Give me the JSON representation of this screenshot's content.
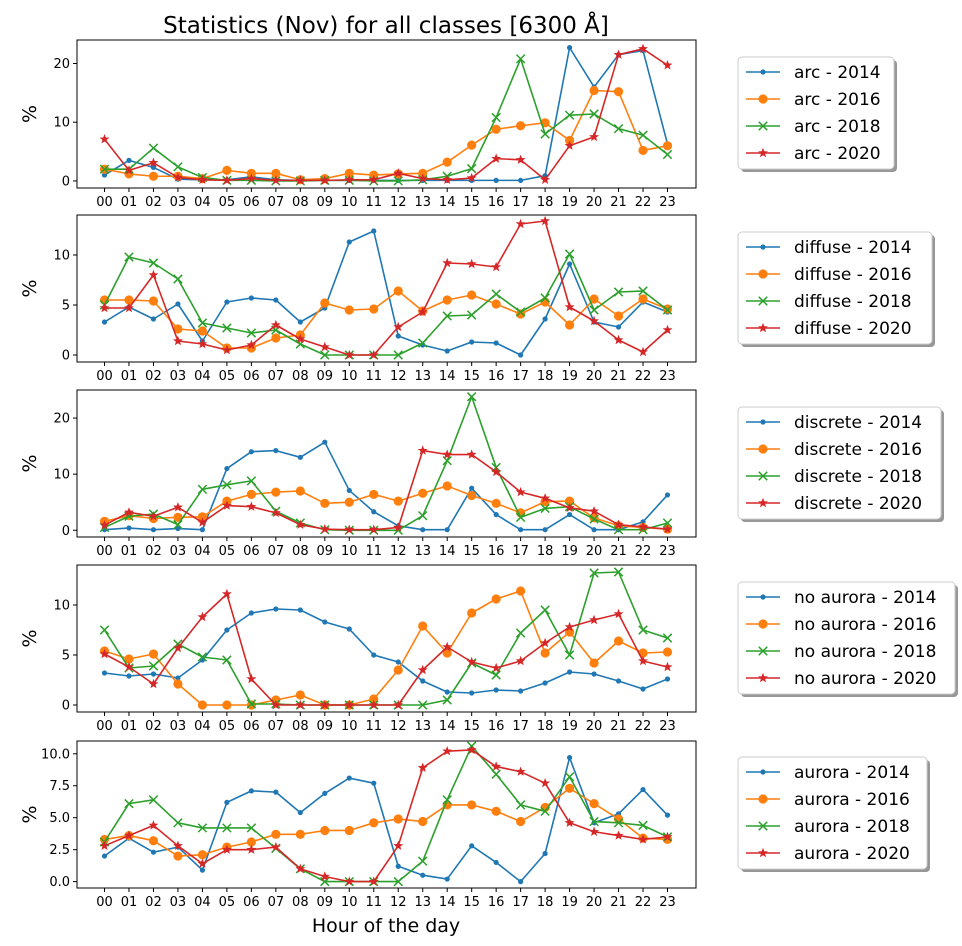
{
  "chart_data": {
    "type": "line",
    "title": "Statistics (Nov) for all classes [6300 Å]",
    "xlabel": "Hour of the day",
    "x": [
      "00",
      "01",
      "02",
      "03",
      "04",
      "05",
      "06",
      "07",
      "08",
      "09",
      "10",
      "11",
      "12",
      "13",
      "14",
      "15",
      "16",
      "17",
      "18",
      "19",
      "20",
      "21",
      "22",
      "23"
    ],
    "colors": {
      "2014": "#1f77b4",
      "2016": "#ff7f0e",
      "2018": "#2ca02c",
      "2020": "#d62728"
    },
    "markers": {
      "2014": "point",
      "2016": "circle",
      "2018": "x",
      "2020": "star"
    },
    "legend_position": "outside-right",
    "panels": [
      {
        "ylabel": "%",
        "ylim": [
          -1.2,
          24.0
        ],
        "yticks": [
          "0",
          "10",
          "20"
        ],
        "yticks_values": [
          0,
          10,
          20
        ],
        "series": [
          {
            "name": "arc - 2014",
            "year": "2014",
            "values": [
              1.0,
              3.5,
              2.3,
              0.3,
              0.2,
              0.2,
              0.7,
              0.2,
              0.1,
              0.1,
              0.1,
              0.1,
              0.1,
              0.1,
              0.1,
              0.1,
              0.1,
              0.1,
              0.9,
              22.7,
              16.0,
              21.5,
              22.2,
              6.3
            ]
          },
          {
            "name": "arc - 2016",
            "year": "2016",
            "values": [
              2.0,
              1.2,
              0.8,
              0.8,
              0.4,
              1.8,
              1.3,
              1.3,
              0.2,
              0.4,
              1.3,
              1.0,
              1.2,
              1.3,
              3.2,
              6.1,
              8.8,
              9.4,
              9.9,
              6.9,
              15.4,
              15.2,
              5.2,
              6.0
            ]
          },
          {
            "name": "arc - 2018",
            "year": "2018",
            "values": [
              2.0,
              2.0,
              5.6,
              2.4,
              0.6,
              0.1,
              0.1,
              0.0,
              0.0,
              0.1,
              0.1,
              0.0,
              0.0,
              0.2,
              0.8,
              2.1,
              10.8,
              20.8,
              8.0,
              11.2,
              11.4,
              8.9,
              7.8,
              4.5
            ]
          },
          {
            "name": "arc - 2020",
            "year": "2020",
            "values": [
              7.1,
              1.8,
              3.1,
              0.6,
              0.2,
              0.1,
              0.4,
              0.1,
              0.1,
              0.1,
              0.2,
              0.2,
              1.3,
              0.4,
              0.2,
              0.5,
              3.8,
              3.6,
              0.2,
              6.0,
              7.5,
              21.5,
              22.5,
              19.7
            ]
          }
        ]
      },
      {
        "ylabel": "%",
        "ylim": [
          -0.7,
          14.0
        ],
        "yticks": [
          "0",
          "5",
          "10"
        ],
        "yticks_values": [
          0,
          5,
          10
        ],
        "series": [
          {
            "name": "diffuse - 2014",
            "year": "2014",
            "values": [
              3.3,
              4.8,
              3.6,
              5.1,
              1.4,
              5.3,
              5.7,
              5.5,
              3.3,
              4.7,
              11.3,
              12.4,
              1.9,
              1.0,
              0.4,
              1.3,
              1.2,
              0.0,
              3.6,
              9.1,
              3.3,
              2.8,
              5.3,
              4.3
            ]
          },
          {
            "name": "diffuse - 2016",
            "year": "2016",
            "values": [
              5.5,
              5.5,
              5.4,
              2.6,
              2.4,
              0.7,
              0.7,
              1.7,
              2.0,
              5.2,
              4.5,
              4.6,
              6.4,
              4.4,
              5.5,
              6.0,
              5.1,
              4.1,
              5.3,
              3.0,
              5.6,
              3.9,
              5.6,
              4.6
            ]
          },
          {
            "name": "diffuse - 2018",
            "year": "2018",
            "values": [
              5.0,
              9.8,
              9.2,
              7.6,
              3.2,
              2.7,
              2.2,
              2.5,
              1.1,
              0.0,
              0.0,
              0.0,
              0.0,
              1.2,
              3.9,
              4.0,
              6.1,
              4.3,
              5.7,
              10.1,
              4.5,
              6.3,
              6.4,
              4.5
            ]
          },
          {
            "name": "diffuse - 2020",
            "year": "2020",
            "values": [
              4.7,
              4.7,
              8.0,
              1.4,
              1.1,
              0.5,
              1.0,
              3.0,
              1.6,
              0.8,
              0.0,
              0.0,
              2.8,
              4.3,
              9.2,
              9.1,
              8.8,
              13.1,
              13.4,
              4.8,
              3.4,
              1.5,
              0.3,
              2.5
            ]
          }
        ]
      },
      {
        "ylabel": "%",
        "ylim": [
          -1.2,
          25.0
        ],
        "yticks": [
          "0",
          "10",
          "20"
        ],
        "yticks_values": [
          0,
          10,
          20
        ],
        "series": [
          {
            "name": "discrete - 2014",
            "year": "2014",
            "values": [
              0.1,
              0.4,
              0.1,
              0.3,
              0.1,
              11.0,
              14.0,
              14.2,
              13.0,
              15.7,
              7.1,
              3.3,
              0.8,
              0.1,
              0.1,
              7.5,
              2.8,
              0.1,
              0.1,
              2.8,
              0.1,
              0.1,
              1.5,
              6.3
            ]
          },
          {
            "name": "discrete - 2016",
            "year": "2016",
            "values": [
              1.6,
              2.6,
              2.1,
              2.3,
              2.4,
              5.2,
              6.4,
              6.8,
              7.0,
              4.8,
              5.0,
              6.4,
              5.2,
              6.6,
              7.9,
              6.2,
              4.8,
              3.1,
              5.1,
              5.2,
              2.2,
              0.8,
              0.5,
              0.2
            ]
          },
          {
            "name": "discrete - 2018",
            "year": "2018",
            "values": [
              0.5,
              2.5,
              2.9,
              1.0,
              7.3,
              8.1,
              8.8,
              3.4,
              1.3,
              0.1,
              0.0,
              0.0,
              0.0,
              2.6,
              12.4,
              23.8,
              11.2,
              2.3,
              3.9,
              4.2,
              2.0,
              0.1,
              0.1,
              1.3
            ]
          },
          {
            "name": "discrete - 2020",
            "year": "2020",
            "values": [
              0.9,
              3.2,
              2.5,
              4.1,
              1.4,
              4.4,
              4.2,
              3.1,
              1.0,
              0.2,
              0.1,
              0.1,
              0.5,
              14.2,
              13.5,
              13.5,
              10.4,
              6.8,
              5.7,
              4.0,
              3.4,
              1.0,
              0.6,
              0.2
            ]
          }
        ]
      },
      {
        "ylabel": "%",
        "ylim": [
          -0.7,
          14.0
        ],
        "yticks": [
          "0",
          "5",
          "10"
        ],
        "yticks_values": [
          0,
          5,
          10
        ],
        "series": [
          {
            "name": "no aurora - 2014",
            "year": "2014",
            "values": [
              3.2,
              2.9,
              3.1,
              2.7,
              4.5,
              7.5,
              9.2,
              9.6,
              9.5,
              8.3,
              7.6,
              5.0,
              4.3,
              2.4,
              1.3,
              1.2,
              1.5,
              1.4,
              2.2,
              3.3,
              3.1,
              2.4,
              1.6,
              2.6
            ]
          },
          {
            "name": "no aurora - 2016",
            "year": "2016",
            "values": [
              5.4,
              4.6,
              5.1,
              2.1,
              0.0,
              0.0,
              0.0,
              0.5,
              1.0,
              0.0,
              0.0,
              0.6,
              3.5,
              7.9,
              5.2,
              9.2,
              10.6,
              11.4,
              5.2,
              7.3,
              4.2,
              6.4,
              5.2,
              5.3
            ]
          },
          {
            "name": "no aurora - 2018",
            "year": "2018",
            "values": [
              7.5,
              3.7,
              3.9,
              6.1,
              4.8,
              4.5,
              0.1,
              0.1,
              0.0,
              0.0,
              0.0,
              0.0,
              0.0,
              0.0,
              0.5,
              4.2,
              3.0,
              7.2,
              9.5,
              5.0,
              13.2,
              13.3,
              7.5,
              6.7
            ]
          },
          {
            "name": "no aurora - 2020",
            "year": "2020",
            "values": [
              5.1,
              3.8,
              2.1,
              5.7,
              8.8,
              11.1,
              2.6,
              0.0,
              0.0,
              0.0,
              0.0,
              0.0,
              0.0,
              3.5,
              5.8,
              4.3,
              3.7,
              4.4,
              6.2,
              7.8,
              8.5,
              9.1,
              4.4,
              3.8
            ]
          }
        ]
      },
      {
        "ylabel": "%",
        "ylim": [
          -0.5,
          11.0
        ],
        "yticks": [
          "0.0",
          "2.5",
          "5.0",
          "7.5",
          "10.0"
        ],
        "yticks_values": [
          0,
          2.5,
          5,
          7.5,
          10
        ],
        "series": [
          {
            "name": "aurora - 2014",
            "year": "2014",
            "values": [
              2.0,
              3.4,
              2.3,
              2.7,
              0.9,
              6.2,
              7.1,
              7.0,
              5.4,
              6.9,
              8.1,
              7.7,
              1.2,
              0.5,
              0.2,
              2.8,
              1.5,
              0.0,
              2.2,
              9.7,
              4.6,
              5.3,
              7.2,
              5.2
            ]
          },
          {
            "name": "aurora - 2016",
            "year": "2016",
            "values": [
              3.3,
              3.6,
              3.2,
              2.0,
              2.1,
              2.7,
              3.1,
              3.7,
              3.7,
              4.0,
              4.0,
              4.6,
              4.9,
              4.7,
              6.0,
              6.0,
              5.5,
              4.7,
              5.8,
              7.3,
              6.1,
              4.9,
              3.4,
              3.3
            ]
          },
          {
            "name": "aurora - 2018",
            "year": "2018",
            "values": [
              3.1,
              6.1,
              6.4,
              4.6,
              4.2,
              4.2,
              4.2,
              2.6,
              1.0,
              0.0,
              0.0,
              0.0,
              0.0,
              1.6,
              6.4,
              10.6,
              8.4,
              6.0,
              5.5,
              8.2,
              4.7,
              4.6,
              4.4,
              3.5
            ]
          },
          {
            "name": "aurora - 2020",
            "year": "2020",
            "values": [
              2.8,
              3.6,
              4.4,
              2.8,
              1.4,
              2.5,
              2.5,
              2.7,
              1.0,
              0.4,
              0.0,
              0.0,
              2.8,
              8.9,
              10.2,
              10.3,
              9.0,
              8.6,
              7.7,
              4.6,
              3.9,
              3.6,
              3.3,
              3.5
            ]
          }
        ]
      }
    ]
  }
}
